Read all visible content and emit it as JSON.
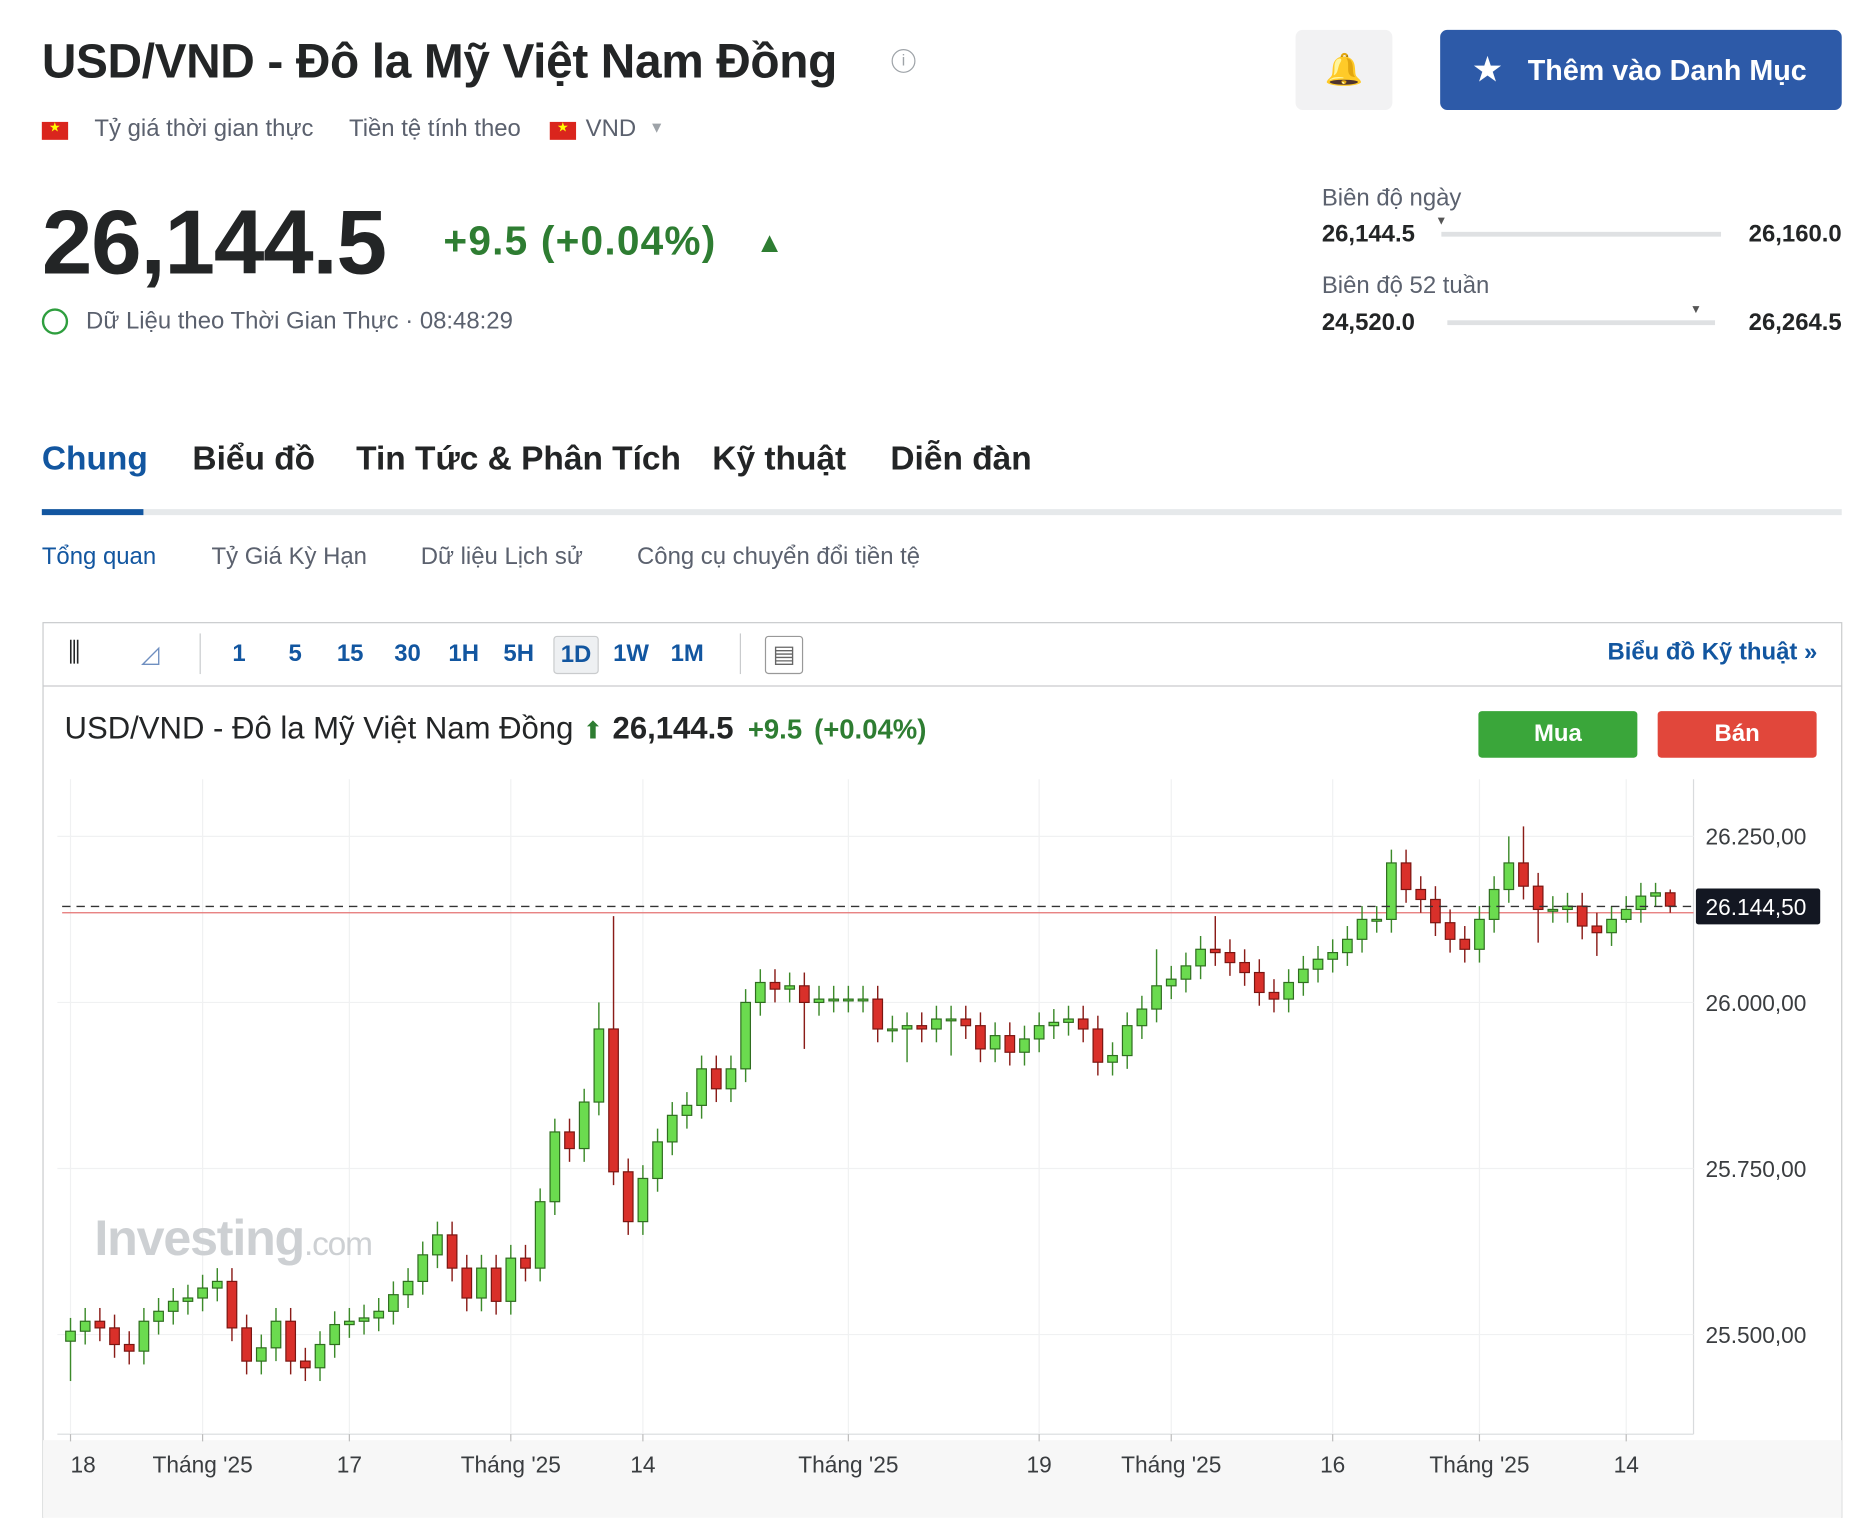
{
  "header": {
    "title": "USD/VND - Đô la Mỹ Việt Nam Đồng",
    "realtime": "Tỷ giá thời gian thực",
    "currency_label": "Tiền tệ tính theo",
    "currency": "VND",
    "watchlist_button": "Thêm vào Danh Mục"
  },
  "quote": {
    "price": "26,144.5",
    "change": "+9.5 (+0.04%)",
    "time_label": "Dữ Liệu theo Thời Gian Thực · 08:48:29"
  },
  "ranges": {
    "day_label": "Biên độ ngày",
    "day_low": "26,144.5",
    "day_high": "26,160.0",
    "week52_label": "Biên độ 52 tuần",
    "week52_low": "24,520.0",
    "week52_high": "26,264.5"
  },
  "tabs": [
    "Chung",
    "Biểu đồ",
    "Tin Tức & Phân Tích",
    "Kỹ thuật",
    "Diễn đàn"
  ],
  "subtabs": [
    "Tổng quan",
    "Tỷ Giá Kỳ Hạn",
    "Dữ liệu Lịch sử",
    "Công cụ chuyển đổi tiền tệ"
  ],
  "toolbar": {
    "intervals": [
      "1",
      "5",
      "15",
      "30",
      "1H",
      "5H",
      "1D",
      "1W",
      "1M"
    ],
    "technical_link": "Biểu đồ Kỹ thuật »"
  },
  "chart_header": {
    "name": "USD/VND - Đô la Mỹ Việt Nam Đồng",
    "price": "26,144.5",
    "change": "+9.5",
    "change_pct": "(+0.04%)",
    "buy": "Mua",
    "sell": "Bán"
  },
  "watermark": [
    "Investing",
    ".com"
  ],
  "chart_data": {
    "type": "candlestick",
    "up_color": "#6bdb4f",
    "down_color": "#d9302a",
    "open": [
      25490,
      25505,
      25520,
      25510,
      25485,
      25475,
      25520,
      25535,
      25550,
      25555,
      25570,
      25580,
      25510,
      25460,
      25480,
      25520,
      25460,
      25450,
      25485,
      25515,
      25520,
      25525,
      25535,
      25560,
      25580,
      25620,
      25650,
      25600,
      25555,
      25600,
      25550,
      25615,
      25600,
      25700,
      25805,
      25780,
      25850,
      25960,
      25745,
      25670,
      25735,
      25790,
      25830,
      25845,
      25900,
      25870,
      25900,
      26000,
      26030,
      26020,
      26025,
      26000,
      26005,
      26005,
      26005,
      26005,
      25960,
      25960,
      25965,
      25960,
      25975,
      25975,
      25965,
      25930,
      25950,
      25925,
      25945,
      25965,
      25970,
      25975,
      25960,
      25910,
      25920,
      25965,
      25990,
      26025,
      26035,
      26055,
      26080,
      26075,
      26060,
      26045,
      26015,
      26005,
      26030,
      26050,
      26065,
      26075,
      26095,
      26125,
      26125,
      26210,
      26170,
      26155,
      26120,
      26095,
      26080,
      26125,
      26170,
      26210,
      26175,
      26140,
      26140,
      26145,
      26115,
      26105,
      26125,
      26140,
      26160,
      26165
    ],
    "high": [
      25525,
      25540,
      25540,
      25530,
      25505,
      25540,
      25555,
      25570,
      25575,
      25590,
      25600,
      25600,
      25530,
      25500,
      25540,
      25540,
      25480,
      25505,
      25535,
      25540,
      25545,
      25555,
      25580,
      25600,
      25640,
      25670,
      25670,
      25620,
      25620,
      25620,
      25635,
      25635,
      25720,
      25825,
      25825,
      25870,
      26000,
      26130,
      25765,
      25755,
      25810,
      25850,
      25865,
      25920,
      25920,
      25920,
      26020,
      26050,
      26050,
      26045,
      26045,
      26025,
      26025,
      26025,
      26025,
      26025,
      25980,
      25985,
      25985,
      25995,
      25995,
      25995,
      25985,
      25970,
      25970,
      25965,
      25985,
      25990,
      25995,
      25995,
      25980,
      25940,
      25985,
      26010,
      26080,
      26055,
      26075,
      26100,
      26130,
      26095,
      26080,
      26065,
      26035,
      26050,
      26070,
      26085,
      26095,
      26115,
      26145,
      26145,
      26230,
      26230,
      26190,
      26175,
      26140,
      26115,
      26145,
      26190,
      26250,
      26265,
      26195,
      26160,
      26165,
      26165,
      26135,
      26145,
      26160,
      26180,
      26180,
      26170
    ],
    "low": [
      25430,
      25485,
      25490,
      25465,
      25455,
      25455,
      25500,
      25515,
      25530,
      25535,
      25550,
      25490,
      25440,
      25440,
      25460,
      25440,
      25430,
      25430,
      25465,
      25495,
      25500,
      25505,
      25515,
      25540,
      25560,
      25600,
      25580,
      25535,
      25535,
      25530,
      25530,
      25580,
      25580,
      25680,
      25760,
      25760,
      25830,
      25725,
      25650,
      25650,
      25715,
      25770,
      25810,
      25825,
      25850,
      25850,
      25880,
      25980,
      26000,
      26000,
      25930,
      25980,
      25985,
      25985,
      25985,
      25940,
      25940,
      25910,
      25940,
      25940,
      25920,
      25945,
      25910,
      25910,
      25905,
      25905,
      25925,
      25945,
      25950,
      25940,
      25890,
      25890,
      25900,
      25945,
      25970,
      26005,
      26015,
      26035,
      26055,
      26040,
      26025,
      25995,
      25985,
      25985,
      26010,
      26030,
      26045,
      26055,
      26075,
      26105,
      26105,
      26150,
      26135,
      26100,
      26075,
      26060,
      26060,
      26105,
      26150,
      26155,
      26090,
      26120,
      26120,
      26095,
      26070,
      26085,
      26120,
      26120,
      26145,
      26135
    ],
    "close": [
      25505,
      25520,
      25510,
      25485,
      25475,
      25520,
      25535,
      25550,
      25555,
      25570,
      25580,
      25510,
      25460,
      25480,
      25520,
      25460,
      25450,
      25485,
      25515,
      25520,
      25525,
      25535,
      25560,
      25580,
      25620,
      25650,
      25600,
      25555,
      25600,
      25550,
      25615,
      25600,
      25700,
      25805,
      25780,
      25850,
      25960,
      25745,
      25670,
      25735,
      25790,
      25830,
      25845,
      25900,
      25870,
      25900,
      26000,
      26030,
      26020,
      26025,
      26000,
      26005,
      26005,
      26005,
      26005,
      25960,
      25960,
      25965,
      25960,
      25975,
      25975,
      25965,
      25930,
      25950,
      25925,
      25945,
      25965,
      25970,
      25975,
      25960,
      25910,
      25920,
      25965,
      25990,
      26025,
      26035,
      26055,
      26080,
      26075,
      26060,
      26045,
      26015,
      26005,
      26030,
      26050,
      26065,
      26075,
      26095,
      26125,
      26125,
      26210,
      26170,
      26155,
      26120,
      26095,
      26080,
      26125,
      26170,
      26210,
      26175,
      26140,
      26140,
      26145,
      26115,
      26105,
      26125,
      26140,
      26160,
      26165,
      26145
    ],
    "ylim": [
      25350,
      26336
    ],
    "yticks": [
      {
        "value": 25500,
        "label": "25.500,00"
      },
      {
        "value": 25750,
        "label": "25.750,00"
      },
      {
        "value": 26000,
        "label": "26.000,00"
      },
      {
        "value": 26250,
        "label": "26.250,00"
      }
    ],
    "xticks": [
      {
        "value": 0,
        "label": "18"
      },
      {
        "value": 9,
        "label": "Tháng '25"
      },
      {
        "value": 19,
        "label": "17"
      },
      {
        "value": 30,
        "label": "Tháng '25"
      },
      {
        "value": 39,
        "label": "14"
      },
      {
        "value": 53,
        "label": "Tháng '25"
      },
      {
        "value": 66,
        "label": "19"
      },
      {
        "value": 75,
        "label": "Tháng '25"
      },
      {
        "value": 86,
        "label": "16"
      },
      {
        "value": 96,
        "label": "Tháng '25"
      },
      {
        "value": 106,
        "label": "14"
      }
    ],
    "last_price": {
      "value": 26144.5,
      "label": "26.144,50"
    },
    "previous_close": 26135,
    "grid": true
  }
}
